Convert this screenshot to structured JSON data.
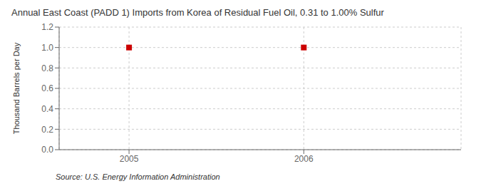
{
  "chart_data": {
    "type": "scatter",
    "title": "Annual East Coast (PADD 1) Imports from Korea of Residual Fuel Oil, 0.31 to 1.00% Sulfur",
    "y_label": "Thousand Barrels per Day",
    "annotation": "Source: U.S. Energy Information Administration",
    "x": [
      2005,
      2006
    ],
    "values": [
      1.0,
      1.0
    ],
    "xlim": [
      2004.6,
      2006.9
    ],
    "ylim": [
      0.0,
      1.2
    ],
    "xticks": [
      2005,
      2006
    ],
    "yticks": [
      {
        "value": 0.0,
        "label": "0.0"
      },
      0.2,
      0.4,
      0.6,
      0.8,
      {
        "value": 1.0,
        "label": "1.0"
      },
      1.2
    ],
    "grid": true,
    "color": "#cc0000",
    "marker": "square"
  }
}
